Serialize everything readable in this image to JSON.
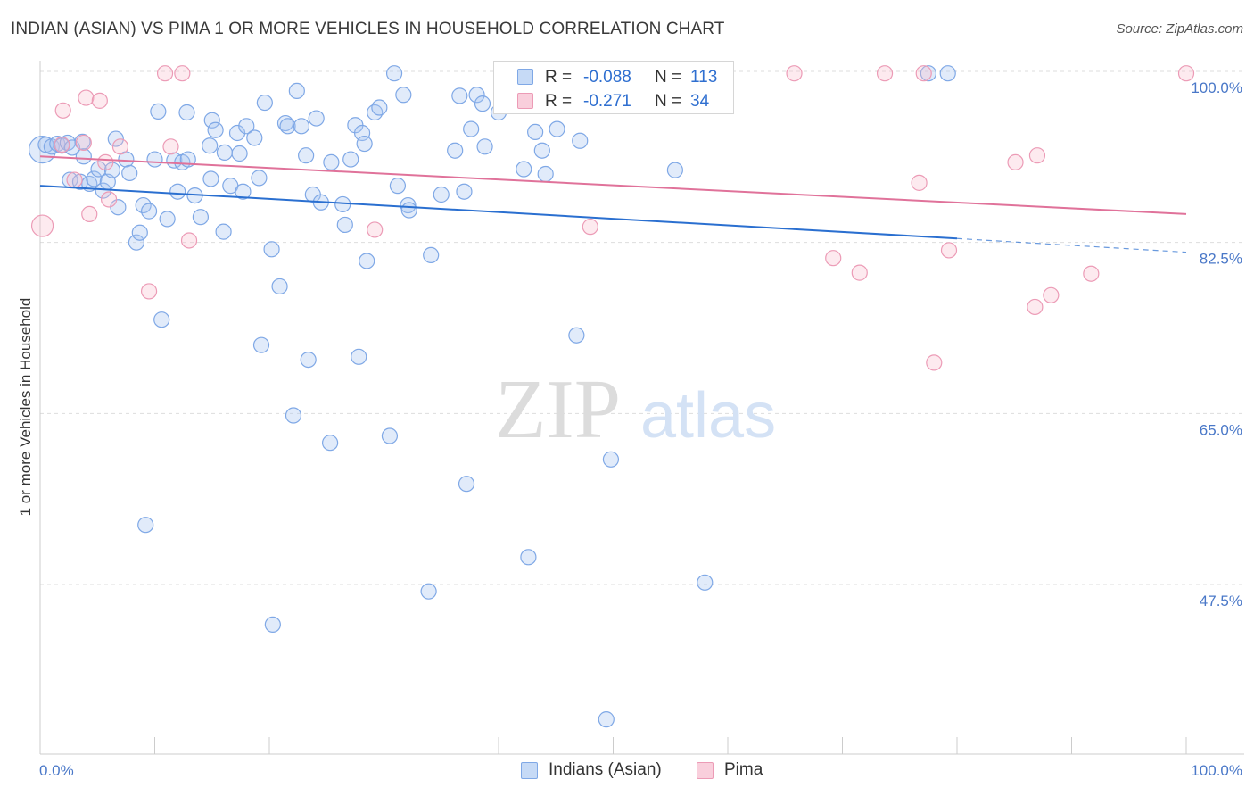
{
  "title": "INDIAN (ASIAN) VS PIMA 1 OR MORE VEHICLES IN HOUSEHOLD CORRELATION CHART",
  "source": "Source: ZipAtlas.com",
  "watermark": {
    "zip": "ZIP",
    "atlas": "atlas"
  },
  "legend": {
    "r_label": "R =",
    "n_label": "N =",
    "series": [
      {
        "r": "-0.088",
        "n": "113",
        "color": "#a8c6f2",
        "border": "#6d9be0"
      },
      {
        "r": "-0.271",
        "n": "34",
        "color": "#f7b8cb",
        "border": "#e88aa8"
      }
    ]
  },
  "bottom_legend": [
    "Indians (Asian)",
    "Pima"
  ],
  "chart_data": {
    "type": "scatter",
    "title": "INDIAN (ASIAN) VS PIMA 1 OR MORE VEHICLES IN HOUSEHOLD CORRELATION CHART",
    "xlabel": "",
    "ylabel": "1 or more Vehicles in Household",
    "x_tick_labels": [
      "0.0%",
      "100.0%"
    ],
    "y_tick_labels": [
      "100.0%",
      "82.5%",
      "65.0%",
      "47.5%"
    ],
    "y_ticks": [
      100.0,
      82.5,
      65.0,
      47.5
    ],
    "xlim": [
      0,
      100
    ],
    "ylim": [
      33.0,
      102.0
    ],
    "grid": true,
    "legend_position": "top-center",
    "colors": {
      "blue_point": "#7fa8e6",
      "pink_point": "#ec9bb6",
      "blue_line": "#2a6fd0",
      "pink_line": "#e0729a",
      "tick": "#4a78c8"
    },
    "series": [
      {
        "name": "Indians (Asian)",
        "color": "#7fa8e6",
        "trend": {
          "x": [
            0,
            80
          ],
          "y": [
            88.3,
            82.9
          ],
          "dashed_extension_to": [
            100,
            81.5
          ]
        },
        "points": [
          [
            0.2,
            92.0
          ],
          [
            0.5,
            92.5
          ],
          [
            1.0,
            92.3
          ],
          [
            1.5,
            92.6
          ],
          [
            1.9,
            92.4
          ],
          [
            2.4,
            92.7
          ],
          [
            2.6,
            88.9
          ],
          [
            2.8,
            92.2
          ],
          [
            3.5,
            88.7
          ],
          [
            3.7,
            92.8
          ],
          [
            3.8,
            91.3
          ],
          [
            4.3,
            88.5
          ],
          [
            4.7,
            89.0
          ],
          [
            5.1,
            90.0
          ],
          [
            5.5,
            87.8
          ],
          [
            5.9,
            88.7
          ],
          [
            6.3,
            89.9
          ],
          [
            6.6,
            93.1
          ],
          [
            6.8,
            86.1
          ],
          [
            7.5,
            91.0
          ],
          [
            7.8,
            89.6
          ],
          [
            8.4,
            82.5
          ],
          [
            8.7,
            83.5
          ],
          [
            9.0,
            86.3
          ],
          [
            9.5,
            85.7
          ],
          [
            10.0,
            91.0
          ],
          [
            10.3,
            95.9
          ],
          [
            10.6,
            74.6
          ],
          [
            11.1,
            84.9
          ],
          [
            11.7,
            90.9
          ],
          [
            12.0,
            87.7
          ],
          [
            12.4,
            90.7
          ],
          [
            12.8,
            95.8
          ],
          [
            12.9,
            91.0
          ],
          [
            13.5,
            87.3
          ],
          [
            14.0,
            85.1
          ],
          [
            14.8,
            92.4
          ],
          [
            14.9,
            89.0
          ],
          [
            15.0,
            95.0
          ],
          [
            15.3,
            94.0
          ],
          [
            16.0,
            83.6
          ],
          [
            16.1,
            91.7
          ],
          [
            16.6,
            88.3
          ],
          [
            17.2,
            93.7
          ],
          [
            17.4,
            91.6
          ],
          [
            17.7,
            87.7
          ],
          [
            18.0,
            94.4
          ],
          [
            18.7,
            93.2
          ],
          [
            19.1,
            89.1
          ],
          [
            19.3,
            72.0
          ],
          [
            19.6,
            96.8
          ],
          [
            20.2,
            81.8
          ],
          [
            20.9,
            78.0
          ],
          [
            21.4,
            94.7
          ],
          [
            21.6,
            94.4
          ],
          [
            22.1,
            64.8
          ],
          [
            22.4,
            98.0
          ],
          [
            22.8,
            94.4
          ],
          [
            23.2,
            91.4
          ],
          [
            23.4,
            70.5
          ],
          [
            23.8,
            87.4
          ],
          [
            24.1,
            95.2
          ],
          [
            24.5,
            86.6
          ],
          [
            25.3,
            62.0
          ],
          [
            25.4,
            90.7
          ],
          [
            26.4,
            86.4
          ],
          [
            26.6,
            84.3
          ],
          [
            27.1,
            91.0
          ],
          [
            27.5,
            94.5
          ],
          [
            27.8,
            70.8
          ],
          [
            28.1,
            93.7
          ],
          [
            28.3,
            92.6
          ],
          [
            28.5,
            80.6
          ],
          [
            29.2,
            95.8
          ],
          [
            29.6,
            96.3
          ],
          [
            30.5,
            62.7
          ],
          [
            30.9,
            99.8
          ],
          [
            31.2,
            88.3
          ],
          [
            31.7,
            97.6
          ],
          [
            32.1,
            86.3
          ],
          [
            32.2,
            85.8
          ],
          [
            33.9,
            46.8
          ],
          [
            34.1,
            81.2
          ],
          [
            35.0,
            87.4
          ],
          [
            36.2,
            91.9
          ],
          [
            36.6,
            97.5
          ],
          [
            37.0,
            87.7
          ],
          [
            37.2,
            57.8
          ],
          [
            37.6,
            94.1
          ],
          [
            38.1,
            97.6
          ],
          [
            38.6,
            96.7
          ],
          [
            38.8,
            92.3
          ],
          [
            40.0,
            95.8
          ],
          [
            41.1,
            98.6
          ],
          [
            42.2,
            90.0
          ],
          [
            42.6,
            50.3
          ],
          [
            43.2,
            93.8
          ],
          [
            43.8,
            91.9
          ],
          [
            44.1,
            89.5
          ],
          [
            45.1,
            94.1
          ],
          [
            46.2,
            99.8
          ],
          [
            46.8,
            73.0
          ],
          [
            47.1,
            92.9
          ],
          [
            49.2,
            99.6
          ],
          [
            49.4,
            33.7
          ],
          [
            49.8,
            60.3
          ],
          [
            55.4,
            89.9
          ],
          [
            58.0,
            47.7
          ],
          [
            77.5,
            99.8
          ],
          [
            79.2,
            99.8
          ],
          [
            9.2,
            53.6
          ],
          [
            20.3,
            43.4
          ]
        ]
      },
      {
        "name": "Pima",
        "color": "#ec9bb6",
        "trend": {
          "x": [
            0,
            100
          ],
          "y": [
            91.3,
            85.4
          ]
        },
        "points": [
          [
            0.2,
            84.2
          ],
          [
            1.9,
            92.5
          ],
          [
            2.0,
            96.0
          ],
          [
            3.0,
            88.9
          ],
          [
            3.8,
            92.7
          ],
          [
            4.0,
            97.3
          ],
          [
            4.3,
            85.4
          ],
          [
            5.2,
            97.0
          ],
          [
            5.7,
            90.7
          ],
          [
            6.0,
            86.9
          ],
          [
            7.0,
            92.3
          ],
          [
            9.5,
            77.5
          ],
          [
            10.9,
            99.8
          ],
          [
            11.4,
            92.3
          ],
          [
            12.4,
            99.8
          ],
          [
            13.0,
            82.7
          ],
          [
            29.2,
            83.8
          ],
          [
            48.0,
            84.1
          ],
          [
            65.8,
            99.8
          ],
          [
            69.2,
            80.9
          ],
          [
            71.5,
            79.4
          ],
          [
            73.7,
            99.8
          ],
          [
            76.7,
            88.6
          ],
          [
            77.1,
            99.8
          ],
          [
            78.0,
            70.2
          ],
          [
            79.3,
            81.7
          ],
          [
            85.1,
            90.7
          ],
          [
            86.8,
            75.9
          ],
          [
            87.0,
            91.4
          ],
          [
            88.2,
            77.1
          ],
          [
            91.7,
            79.3
          ],
          [
            100.0,
            99.8
          ]
        ]
      }
    ]
  }
}
